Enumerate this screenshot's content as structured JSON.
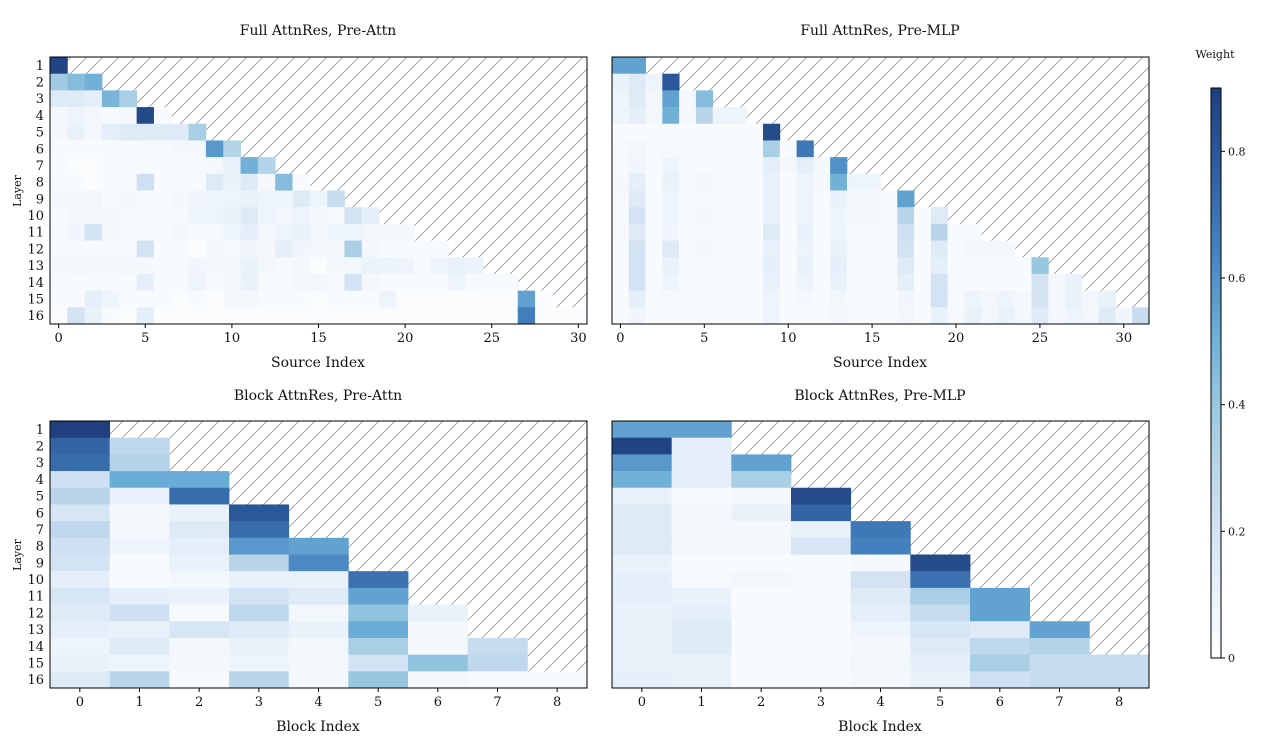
{
  "colorbar": {
    "title": "Weight",
    "min": 0,
    "max": 0.9,
    "ticks": [
      0,
      0.2,
      0.4,
      0.6,
      0.8
    ],
    "tick_labels": [
      "0",
      "0.2",
      "0.4",
      "0.6",
      "0.8"
    ],
    "colormap": [
      "#ffffff",
      "#e3eef9",
      "#c6dbef",
      "#9ecae1",
      "#6baed6",
      "#4682c0",
      "#2f5f9f",
      "#1f3f7f"
    ]
  },
  "chart_data": [
    {
      "type": "heatmap",
      "title": "Full AttnRes, Pre-Attn",
      "xlabel": "Source Index",
      "ylabel": "Layer",
      "x_count": 31,
      "x_ticks": [
        0,
        5,
        10,
        15,
        20,
        25,
        30
      ],
      "x_tick_labels": [
        "0",
        "5",
        "10",
        "15",
        "20",
        "25",
        "30"
      ],
      "y_labels": [
        "1",
        "2",
        "3",
        "4",
        "5",
        "6",
        "7",
        "8",
        "9",
        "10",
        "11",
        "12",
        "13",
        "14",
        "15",
        "16"
      ],
      "row_lengths": [
        1,
        3,
        5,
        7,
        9,
        11,
        13,
        15,
        17,
        19,
        21,
        23,
        25,
        27,
        29,
        31
      ],
      "values": [
        [
          0.88
        ],
        [
          0.38,
          0.45,
          0.5
        ],
        [
          0.15,
          0.15,
          0.12,
          0.48,
          0.35
        ],
        [
          0.05,
          0.08,
          0.06,
          0.04,
          0.05,
          0.86,
          0.03
        ],
        [
          0.05,
          0.1,
          0.06,
          0.12,
          0.15,
          0.15,
          0.15,
          0.15,
          0.35
        ],
        [
          0.04,
          0.03,
          0.03,
          0.03,
          0.03,
          0.04,
          0.04,
          0.05,
          0.05,
          0.58,
          0.32
        ],
        [
          0.03,
          0.02,
          0.02,
          0.03,
          0.03,
          0.03,
          0.03,
          0.04,
          0.04,
          0.05,
          0.1,
          0.5,
          0.32
        ],
        [
          0.04,
          0.03,
          0.02,
          0.03,
          0.03,
          0.22,
          0.03,
          0.04,
          0.04,
          0.15,
          0.1,
          0.15,
          0.05,
          0.45,
          0.03
        ],
        [
          0.05,
          0.05,
          0.06,
          0.03,
          0.05,
          0.03,
          0.03,
          0.05,
          0.07,
          0.08,
          0.08,
          0.1,
          0.08,
          0.08,
          0.15,
          0.08,
          0.25
        ],
        [
          0.03,
          0.06,
          0.06,
          0.05,
          0.03,
          0.03,
          0.04,
          0.04,
          0.08,
          0.08,
          0.1,
          0.15,
          0.08,
          0.06,
          0.08,
          0.05,
          0.03,
          0.2,
          0.12
        ],
        [
          0.04,
          0.07,
          0.2,
          0.06,
          0.03,
          0.03,
          0.04,
          0.05,
          0.03,
          0.04,
          0.08,
          0.12,
          0.06,
          0.08,
          0.1,
          0.06,
          0.08,
          0.08,
          0.06,
          0.05,
          0.05
        ],
        [
          0.03,
          0.03,
          0.03,
          0.03,
          0.03,
          0.2,
          0.03,
          0.03,
          0.02,
          0.05,
          0.03,
          0.07,
          0.05,
          0.12,
          0.07,
          0.05,
          0.05,
          0.35,
          0.05,
          0.03,
          0.03,
          0.03,
          0.03
        ],
        [
          0.06,
          0.05,
          0.05,
          0.05,
          0.05,
          0.05,
          0.04,
          0.04,
          0.07,
          0.05,
          0.05,
          0.1,
          0.06,
          0.04,
          0.05,
          0.02,
          0.06,
          0.06,
          0.09,
          0.09,
          0.08,
          0.03,
          0.08,
          0.1,
          0.09
        ],
        [
          0.04,
          0.03,
          0.04,
          0.04,
          0.03,
          0.12,
          0.04,
          0.03,
          0.08,
          0.04,
          0.05,
          0.1,
          0.04,
          0.03,
          0.06,
          0.06,
          0.04,
          0.2,
          0.05,
          0.03,
          0.03,
          0.03,
          0.03,
          0.08,
          0.04,
          0.03,
          0.03
        ],
        [
          0.03,
          0.03,
          0.12,
          0.08,
          0.03,
          0.03,
          0.03,
          0.02,
          0.03,
          0.02,
          0.05,
          0.05,
          0.03,
          0.03,
          0.03,
          0.02,
          0.03,
          0.03,
          0.03,
          0.08,
          0.02,
          0.02,
          0.02,
          0.02,
          0.02,
          0.02,
          0.02,
          0.55,
          0.02
        ],
        [
          0.02,
          0.2,
          0.1,
          0.03,
          0.02,
          0.12,
          0.02,
          0.02,
          0.02,
          0.02,
          0.02,
          0.02,
          0.02,
          0.02,
          0.02,
          0.02,
          0.02,
          0.02,
          0.02,
          0.02,
          0.02,
          0.02,
          0.02,
          0.02,
          0.02,
          0.02,
          0.02,
          0.66,
          0.02,
          0.02,
          0.02
        ]
      ]
    },
    {
      "type": "heatmap",
      "title": "Full AttnRes, Pre-MLP",
      "xlabel": "Source Index",
      "ylabel": "",
      "x_count": 32,
      "x_ticks": [
        0,
        5,
        10,
        15,
        20,
        25,
        30
      ],
      "x_tick_labels": [
        "0",
        "5",
        "10",
        "15",
        "20",
        "25",
        "30"
      ],
      "y_labels": [
        "1",
        "2",
        "3",
        "4",
        "5",
        "6",
        "7",
        "8",
        "9",
        "10",
        "11",
        "12",
        "13",
        "14",
        "15",
        "16"
      ],
      "row_lengths": [
        2,
        4,
        6,
        8,
        10,
        12,
        14,
        16,
        18,
        20,
        22,
        24,
        26,
        28,
        30,
        32
      ],
      "values": [
        [
          0.55,
          0.55
        ],
        [
          0.1,
          0.15,
          0.08,
          0.8
        ],
        [
          0.08,
          0.15,
          0.06,
          0.55,
          0.05,
          0.45
        ],
        [
          0.08,
          0.12,
          0.06,
          0.5,
          0.05,
          0.3,
          0.08,
          0.08
        ],
        [
          0.03,
          0.03,
          0.03,
          0.03,
          0.03,
          0.03,
          0.03,
          0.03,
          0.03,
          0.85
        ],
        [
          0.04,
          0.06,
          0.03,
          0.04,
          0.03,
          0.03,
          0.03,
          0.03,
          0.03,
          0.35,
          0.03,
          0.68
        ],
        [
          0.04,
          0.07,
          0.03,
          0.08,
          0.03,
          0.03,
          0.03,
          0.03,
          0.03,
          0.12,
          0.05,
          0.12,
          0.05,
          0.6
        ],
        [
          0.05,
          0.12,
          0.03,
          0.1,
          0.03,
          0.05,
          0.03,
          0.03,
          0.03,
          0.1,
          0.03,
          0.08,
          0.05,
          0.5,
          0.08,
          0.08
        ],
        [
          0.04,
          0.15,
          0.03,
          0.08,
          0.03,
          0.03,
          0.03,
          0.03,
          0.03,
          0.1,
          0.03,
          0.08,
          0.03,
          0.1,
          0.05,
          0.05,
          0.03,
          0.55
        ],
        [
          0.04,
          0.2,
          0.03,
          0.08,
          0.03,
          0.06,
          0.03,
          0.03,
          0.03,
          0.1,
          0.03,
          0.08,
          0.03,
          0.08,
          0.05,
          0.05,
          0.03,
          0.3,
          0.03,
          0.15
        ],
        [
          0.04,
          0.15,
          0.03,
          0.07,
          0.03,
          0.03,
          0.03,
          0.03,
          0.03,
          0.15,
          0.03,
          0.1,
          0.03,
          0.08,
          0.04,
          0.04,
          0.03,
          0.22,
          0.03,
          0.3,
          0.03,
          0.03
        ],
        [
          0.03,
          0.2,
          0.03,
          0.15,
          0.03,
          0.06,
          0.03,
          0.03,
          0.03,
          0.1,
          0.03,
          0.08,
          0.03,
          0.1,
          0.04,
          0.04,
          0.03,
          0.2,
          0.03,
          0.15,
          0.03,
          0.05,
          0.05,
          0.05
        ],
        [
          0.03,
          0.2,
          0.03,
          0.1,
          0.03,
          0.03,
          0.03,
          0.03,
          0.03,
          0.12,
          0.03,
          0.1,
          0.03,
          0.12,
          0.03,
          0.03,
          0.03,
          0.15,
          0.03,
          0.12,
          0.03,
          0.03,
          0.03,
          0.04,
          0.03,
          0.4
        ],
        [
          0.03,
          0.2,
          0.03,
          0.08,
          0.03,
          0.03,
          0.03,
          0.03,
          0.03,
          0.1,
          0.03,
          0.08,
          0.03,
          0.1,
          0.03,
          0.03,
          0.03,
          0.12,
          0.03,
          0.2,
          0.03,
          0.03,
          0.03,
          0.03,
          0.03,
          0.2,
          0.05,
          0.1
        ],
        [
          0.03,
          0.12,
          0.03,
          0.04,
          0.03,
          0.03,
          0.03,
          0.03,
          0.03,
          0.08,
          0.03,
          0.05,
          0.03,
          0.06,
          0.03,
          0.03,
          0.03,
          0.07,
          0.03,
          0.2,
          0.04,
          0.08,
          0.06,
          0.08,
          0.05,
          0.2,
          0.05,
          0.1,
          0.06,
          0.1
        ],
        [
          0.03,
          0.07,
          0.03,
          0.04,
          0.03,
          0.03,
          0.03,
          0.03,
          0.03,
          0.08,
          0.03,
          0.04,
          0.03,
          0.05,
          0.03,
          0.03,
          0.03,
          0.06,
          0.03,
          0.1,
          0.04,
          0.1,
          0.06,
          0.1,
          0.06,
          0.15,
          0.05,
          0.08,
          0.06,
          0.15,
          0.07,
          0.25
        ]
      ]
    },
    {
      "type": "heatmap",
      "title": "Block AttnRes, Pre-Attn",
      "xlabel": "Block Index",
      "ylabel": "Layer",
      "x_count": 9,
      "x_ticks": [
        0,
        1,
        2,
        3,
        4,
        5,
        6,
        7,
        8
      ],
      "x_tick_labels": [
        "0",
        "1",
        "2",
        "3",
        "4",
        "5",
        "6",
        "7",
        "8"
      ],
      "y_labels": [
        "1",
        "2",
        "3",
        "4",
        "5",
        "6",
        "7",
        "8",
        "9",
        "10",
        "11",
        "12",
        "13",
        "14",
        "15",
        "16"
      ],
      "row_lengths": [
        1,
        2,
        2,
        3,
        3,
        4,
        4,
        5,
        5,
        6,
        6,
        7,
        7,
        8,
        8,
        9
      ],
      "values": [
        [
          0.9
        ],
        [
          0.75,
          0.28
        ],
        [
          0.72,
          0.32
        ],
        [
          0.22,
          0.52,
          0.52
        ],
        [
          0.3,
          0.1,
          0.72
        ],
        [
          0.18,
          0.05,
          0.1,
          0.8
        ],
        [
          0.28,
          0.05,
          0.15,
          0.72
        ],
        [
          0.22,
          0.08,
          0.12,
          0.58,
          0.55
        ],
        [
          0.2,
          0.03,
          0.1,
          0.3,
          0.62
        ],
        [
          0.12,
          0.03,
          0.06,
          0.1,
          0.1,
          0.7
        ],
        [
          0.18,
          0.12,
          0.1,
          0.2,
          0.15,
          0.55
        ],
        [
          0.15,
          0.22,
          0.04,
          0.28,
          0.06,
          0.42,
          0.1
        ],
        [
          0.12,
          0.1,
          0.18,
          0.15,
          0.1,
          0.52,
          0.05
        ],
        [
          0.08,
          0.15,
          0.06,
          0.1,
          0.06,
          0.35,
          0.05,
          0.25
        ],
        [
          0.1,
          0.08,
          0.05,
          0.08,
          0.05,
          0.2,
          0.42,
          0.28
        ],
        [
          0.15,
          0.3,
          0.03,
          0.3,
          0.05,
          0.4,
          0.05,
          0.03,
          0.03
        ]
      ]
    },
    {
      "type": "heatmap",
      "title": "Block AttnRes, Pre-MLP",
      "xlabel": "Block Index",
      "ylabel": "",
      "x_count": 9,
      "x_ticks": [
        0,
        1,
        2,
        3,
        4,
        5,
        6,
        7,
        8
      ],
      "x_tick_labels": [
        "0",
        "1",
        "2",
        "3",
        "4",
        "5",
        "6",
        "7",
        "8"
      ],
      "y_labels": [
        "1",
        "2",
        "3",
        "4",
        "5",
        "6",
        "7",
        "8",
        "9",
        "10",
        "11",
        "12",
        "13",
        "14",
        "15",
        "16"
      ],
      "row_lengths": [
        2,
        2,
        3,
        3,
        4,
        4,
        5,
        5,
        6,
        6,
        7,
        7,
        8,
        8,
        9,
        9
      ],
      "values": [
        [
          0.55,
          0.55
        ],
        [
          0.88,
          0.12
        ],
        [
          0.58,
          0.12,
          0.55
        ],
        [
          0.5,
          0.12,
          0.35
        ],
        [
          0.1,
          0.03,
          0.05,
          0.85
        ],
        [
          0.15,
          0.05,
          0.1,
          0.75
        ],
        [
          0.15,
          0.05,
          0.05,
          0.1,
          0.68
        ],
        [
          0.15,
          0.05,
          0.05,
          0.18,
          0.65
        ],
        [
          0.1,
          0.03,
          0.03,
          0.03,
          0.05,
          0.85
        ],
        [
          0.12,
          0.04,
          0.06,
          0.04,
          0.2,
          0.7
        ],
        [
          0.12,
          0.1,
          0.03,
          0.03,
          0.15,
          0.35,
          0.55
        ],
        [
          0.1,
          0.12,
          0.03,
          0.03,
          0.12,
          0.25,
          0.55
        ],
        [
          0.1,
          0.15,
          0.03,
          0.03,
          0.08,
          0.18,
          0.15,
          0.55
        ],
        [
          0.1,
          0.15,
          0.03,
          0.03,
          0.05,
          0.15,
          0.28,
          0.32
        ],
        [
          0.1,
          0.1,
          0.03,
          0.03,
          0.06,
          0.12,
          0.35,
          0.25,
          0.25
        ],
        [
          0.12,
          0.1,
          0.03,
          0.03,
          0.05,
          0.1,
          0.22,
          0.25,
          0.25
        ]
      ]
    }
  ]
}
